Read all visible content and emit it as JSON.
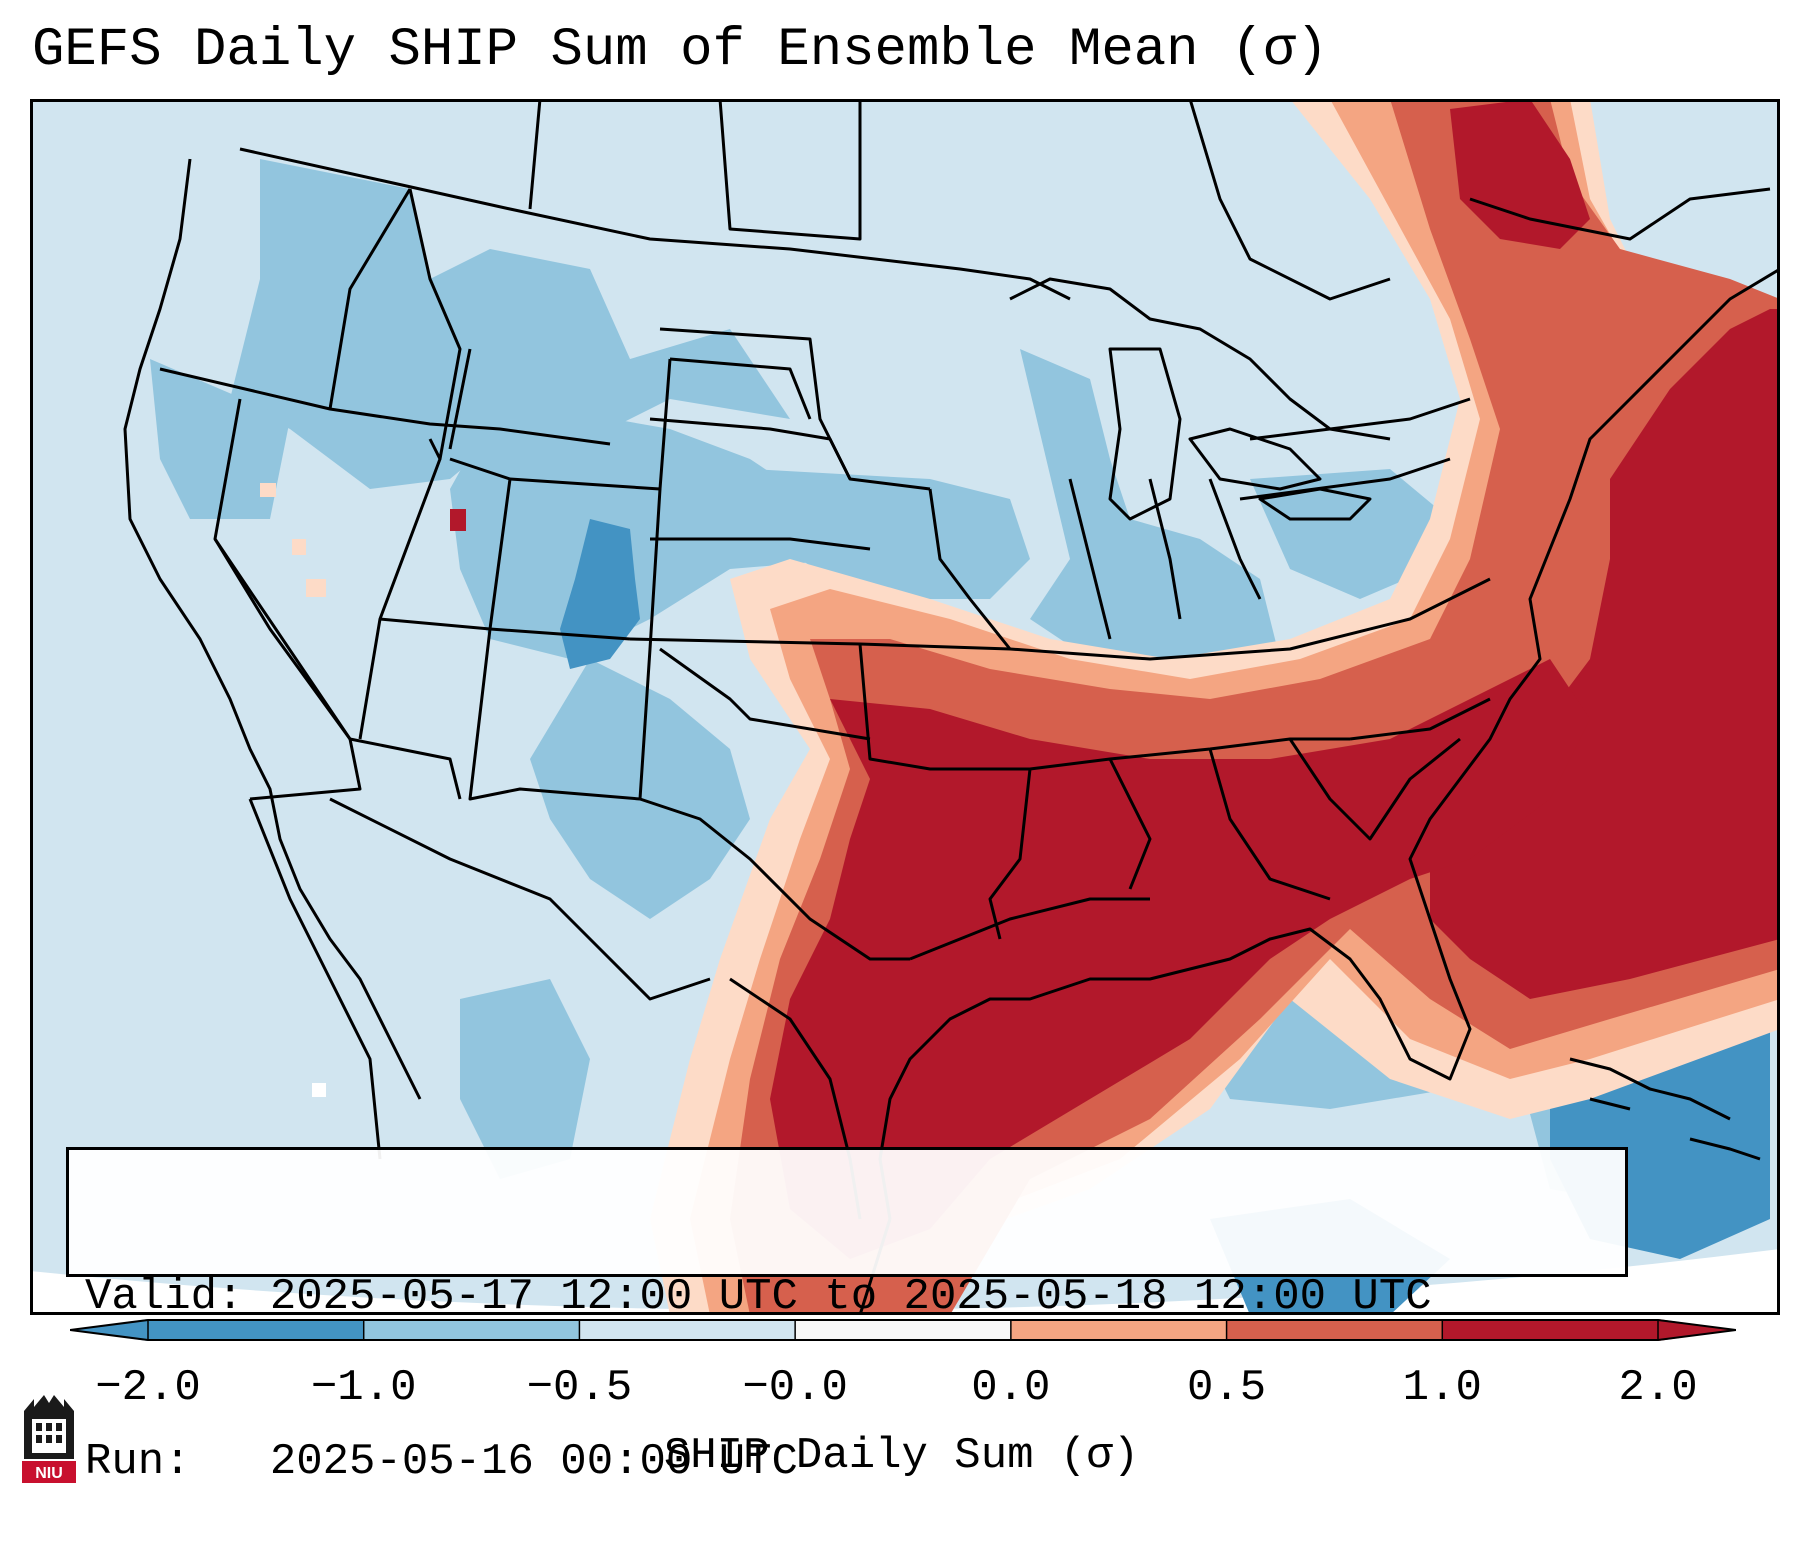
{
  "title": "GEFS Daily SHIP Sum of Ensemble Mean (σ)",
  "info": {
    "valid_label": "Valid:",
    "valid_value": "2025-05-17 12:00 UTC to 2025-05-18 12:00 UTC",
    "run_label": "Run:",
    "run_value": "2025-05-16 00:00 UTC"
  },
  "colorbar": {
    "label": "SHIP Daily Sum (σ)",
    "ticks": [
      "−2.0",
      "−1.0",
      "−0.5",
      "−0.0",
      "0.0",
      "0.5",
      "1.0",
      "2.0"
    ],
    "colors": [
      "#4393c3",
      "#92c5de",
      "#d1e5f0",
      "#f7f7f7",
      "#fddbc7",
      "#f4a582",
      "#d6604d",
      "#b2182b"
    ],
    "extend": "both"
  },
  "map": {
    "region": "contiguous United States",
    "ocean_fill_color": "#d1e5f0",
    "land_colors": {
      "strong_negative": "#4393c3",
      "moderate_negative": "#92c5de",
      "weak_negative": "#d1e5f0",
      "weak_positive": "#fddbc7",
      "moderate_positive": "#f4a582",
      "strong_positive": "#d6604d",
      "very_strong_positive": "#b2182b"
    }
  },
  "logo": {
    "text": "NIU",
    "color": "#c8102e"
  }
}
